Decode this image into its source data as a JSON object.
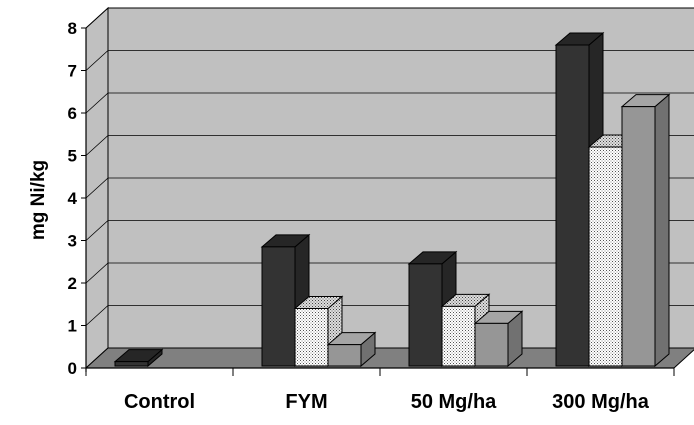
{
  "chart_data": {
    "type": "bar",
    "style": "3d-clustered-column",
    "title": "",
    "xlabel": "",
    "ylabel": "mg Ni/kg",
    "ylim": [
      0,
      8
    ],
    "yticks": [
      "0",
      "1",
      "2",
      "3",
      "4",
      "5",
      "6",
      "7",
      "8"
    ],
    "categories": [
      "Control",
      "FYM",
      "50  Mg/ha",
      "300 Mg/ha"
    ],
    "series": [
      {
        "values": [
          0.15,
          2.85,
          2.45,
          7.6
        ],
        "color": "#333333",
        "pattern": "solid"
      },
      {
        "values": [
          0,
          1.4,
          1.45,
          5.2
        ],
        "color": "#ffffff",
        "pattern": "dotted"
      },
      {
        "values": [
          0,
          0.55,
          1.05,
          6.15
        ],
        "color": "#969696",
        "pattern": "solid"
      }
    ],
    "grid": true,
    "legend": "none",
    "colors": {
      "wall": "#c0c0c0",
      "floor": "#808080",
      "gridline": "#000000"
    }
  }
}
